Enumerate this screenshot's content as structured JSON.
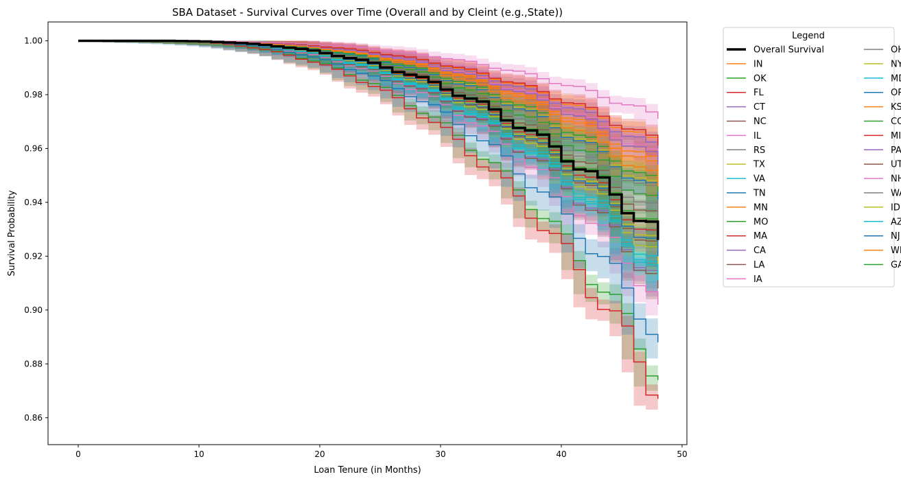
{
  "chart_data": {
    "type": "line",
    "title": "SBA Dataset - Survival Curves over Time (Overall and by Cleint (e.g.,State))",
    "xlabel": "Loan Tenure (in Months)",
    "ylabel": "Survival Probability",
    "xlim": [
      -2.5,
      50.4
    ],
    "ylim": [
      0.85,
      1.007
    ],
    "xticks": [
      0,
      10,
      20,
      30,
      40,
      50
    ],
    "xtick_labels": [
      "0",
      "10",
      "20",
      "30",
      "40",
      "50"
    ],
    "yticks": [
      0.86,
      0.88,
      0.9,
      0.92,
      0.94,
      0.96,
      0.98,
      1.0
    ],
    "ytick_labels": [
      "0.86",
      "0.88",
      "0.90",
      "0.92",
      "0.94",
      "0.96",
      "0.98",
      "1.00"
    ],
    "grid": false,
    "legend": {
      "title": "Legend",
      "placement": "outside right",
      "columns": 2
    },
    "x_months_max": 48,
    "series": [
      {
        "name": "Overall Survival",
        "color": "#000000",
        "end": 0.926,
        "onset": 12,
        "ci": 0,
        "overall": true
      },
      {
        "name": "IN",
        "color": "#ff7f0e",
        "end": 0.96,
        "onset": 13,
        "ci": 0.004
      },
      {
        "name": "OK",
        "color": "#2ca02c",
        "end": 0.874,
        "onset": 10,
        "ci": 0.004
      },
      {
        "name": "FL",
        "color": "#d62728",
        "end": 0.867,
        "onset": 10,
        "ci": 0.004
      },
      {
        "name": "CT",
        "color": "#9467bd",
        "end": 0.958,
        "onset": 13,
        "ci": 0.004
      },
      {
        "name": "NC",
        "color": "#8c564b",
        "end": 0.93,
        "onset": 12,
        "ci": 0.004
      },
      {
        "name": "IL",
        "color": "#e377c2",
        "end": 0.902,
        "onset": 11,
        "ci": 0.004
      },
      {
        "name": "RS",
        "color": "#7f7f7f",
        "end": 0.946,
        "onset": 13,
        "ci": 0.004
      },
      {
        "name": "TX",
        "color": "#bcbd22",
        "end": 0.942,
        "onset": 12,
        "ci": 0.004
      },
      {
        "name": "VA",
        "color": "#17becf",
        "end": 0.912,
        "onset": 11,
        "ci": 0.004
      },
      {
        "name": "TN",
        "color": "#1f77b4",
        "end": 0.888,
        "onset": 11,
        "ci": 0.006
      },
      {
        "name": "MN",
        "color": "#ff7f0e",
        "end": 0.952,
        "onset": 13,
        "ci": 0.004
      },
      {
        "name": "MO",
        "color": "#2ca02c",
        "end": 0.936,
        "onset": 12,
        "ci": 0.004
      },
      {
        "name": "MA",
        "color": "#d62728",
        "end": 0.923,
        "onset": 12,
        "ci": 0.004
      },
      {
        "name": "CA",
        "color": "#9467bd",
        "end": 0.909,
        "onset": 11,
        "ci": 0.004
      },
      {
        "name": "LA",
        "color": "#8c564b",
        "end": 0.908,
        "onset": 11,
        "ci": 0.004
      },
      {
        "name": "IA",
        "color": "#e377c2",
        "end": 0.955,
        "onset": 13,
        "ci": 0.004
      },
      {
        "name": "OH",
        "color": "#7f7f7f",
        "end": 0.94,
        "onset": 12,
        "ci": 0.004
      },
      {
        "name": "NY",
        "color": "#bcbd22",
        "end": 0.921,
        "onset": 12,
        "ci": 0.004
      },
      {
        "name": "MD",
        "color": "#17becf",
        "end": 0.914,
        "onset": 11,
        "ci": 0.004
      },
      {
        "name": "OR",
        "color": "#1f77b4",
        "end": 0.941,
        "onset": 12,
        "ci": 0.004
      },
      {
        "name": "KS",
        "color": "#ff7f0e",
        "end": 0.95,
        "onset": 13,
        "ci": 0.004
      },
      {
        "name": "CO",
        "color": "#2ca02c",
        "end": 0.944,
        "onset": 12,
        "ci": 0.004
      },
      {
        "name": "MI",
        "color": "#d62728",
        "end": 0.961,
        "onset": 13,
        "ci": 0.004
      },
      {
        "name": "PA",
        "color": "#9467bd",
        "end": 0.954,
        "onset": 13,
        "ci": 0.004
      },
      {
        "name": "UT",
        "color": "#8c564b",
        "end": 0.919,
        "onset": 12,
        "ci": 0.004
      },
      {
        "name": "NH",
        "color": "#e377c2",
        "end": 0.971,
        "onset": 14,
        "ci": 0.003
      },
      {
        "name": "WA",
        "color": "#7f7f7f",
        "end": 0.933,
        "onset": 12,
        "ci": 0.004
      },
      {
        "name": "ID",
        "color": "#bcbd22",
        "end": 0.917,
        "onset": 12,
        "ci": 0.004
      },
      {
        "name": "AZ",
        "color": "#17becf",
        "end": 0.911,
        "onset": 11,
        "ci": 0.004
      },
      {
        "name": "NJ",
        "color": "#1f77b4",
        "end": 0.92,
        "onset": 12,
        "ci": 0.004
      },
      {
        "name": "WI",
        "color": "#ff7f0e",
        "end": 0.946,
        "onset": 13,
        "ci": 0.004
      },
      {
        "name": "GA",
        "color": "#2ca02c",
        "end": 0.927,
        "onset": 12,
        "ci": 0.004
      }
    ]
  }
}
